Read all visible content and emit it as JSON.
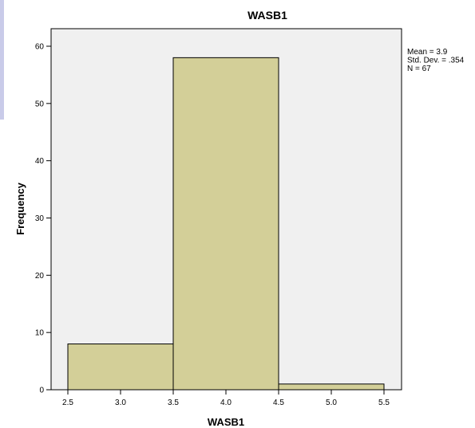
{
  "chart_data": {
    "type": "bar",
    "title": "WASB1",
    "xlabel": "WASB1",
    "ylabel": "Frequency",
    "bins": [
      {
        "from": 2.5,
        "to": 3.5,
        "value": 8
      },
      {
        "from": 3.5,
        "to": 4.5,
        "value": 58
      },
      {
        "from": 4.5,
        "to": 5.5,
        "value": 1
      }
    ],
    "xlim": [
      2.5,
      5.5
    ],
    "ylim": [
      0,
      63
    ],
    "x_ticks": [
      "2.5",
      "3.0",
      "3.5",
      "4.0",
      "4.5",
      "5.0",
      "5.5"
    ],
    "y_ticks": [
      "0",
      "10",
      "20",
      "30",
      "40",
      "50",
      "60"
    ],
    "grid": false,
    "bar_color": "#d3cf98",
    "plot_background": "#f0f0f0",
    "stats": [
      "Mean = 3.9",
      "Std. Dev. = .354",
      "N = 67"
    ]
  }
}
